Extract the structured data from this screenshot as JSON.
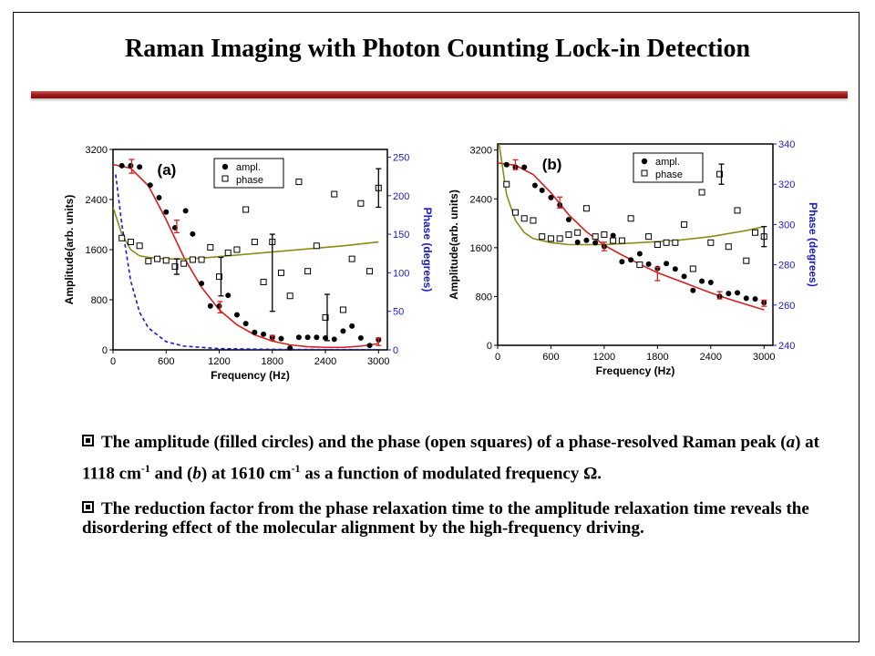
{
  "slide": {
    "title": "Raman Imaging with Photon Counting Lock-in Detection"
  },
  "captions": {
    "item1": {
      "p1": "The amplitude (filled circles) and the phase (open squares) of a phase-resolved Raman peak (",
      "a": "a",
      "p2": ") at 1118 cm",
      "sup1": "-1",
      "p3": " and (",
      "b": "b",
      "p4": ") at 1610 cm",
      "sup2": "-1",
      "p5": " as a function of modulated frequency Ω."
    },
    "item2": "The reduction factor from the phase relaxation time to the amplitude relaxation time reveals the disordering effect of the molecular alignment by the high-frequency driving."
  },
  "colors": {
    "fit_amp": "#d42020",
    "fit_phase": "#8c8c14",
    "blue_axis": "#1a1ac8",
    "errbar_red": "#d42020"
  },
  "chart_data": [
    {
      "type": "scatter",
      "panel_label": "(a)",
      "xlabel": "Frequency (Hz)",
      "ylabel": "Amplitude(arb. units)",
      "y2label": "Phase (degrees)",
      "xlim": [
        0,
        3100
      ],
      "ylim": [
        0,
        3200
      ],
      "y2lim": [
        0,
        260
      ],
      "xticks": [
        0,
        600,
        1200,
        1800,
        2400,
        3000
      ],
      "yticks": [
        0,
        800,
        1600,
        2400,
        3200
      ],
      "y2ticks": [
        0,
        50,
        100,
        150,
        200,
        250
      ],
      "legend": [
        "ampl.",
        "phase"
      ],
      "legend_position": "top-right",
      "series": [
        {
          "name": "ampl.",
          "marker": "filled-circle",
          "x": [
            100,
            200,
            300,
            420,
            520,
            600,
            700,
            820,
            900,
            1000,
            1100,
            1200,
            1300,
            1400,
            1500,
            1600,
            1700,
            1800,
            1900,
            2000,
            2100,
            2200,
            2300,
            2400,
            2500,
            2600,
            2700,
            2800,
            2900,
            3000
          ],
          "y": [
            2940,
            2940,
            2920,
            2630,
            2430,
            2200,
            1950,
            2220,
            1850,
            1060,
            700,
            700,
            870,
            560,
            420,
            280,
            250,
            200,
            180,
            30,
            200,
            200,
            200,
            190,
            170,
            300,
            380,
            190,
            70,
            160
          ]
        },
        {
          "name": "phase",
          "marker": "open-square",
          "x": [
            100,
            200,
            300,
            400,
            500,
            600,
            700,
            800,
            900,
            1000,
            1100,
            1200,
            1300,
            1400,
            1500,
            1600,
            1700,
            1800,
            1900,
            2000,
            2100,
            2200,
            2300,
            2400,
            2500,
            2600,
            2700,
            2800,
            2900,
            3000
          ],
          "y": [
            145,
            140,
            135,
            115,
            118,
            116,
            108,
            112,
            117,
            117,
            133,
            95,
            126,
            130,
            182,
            140,
            88,
            140,
            100,
            70,
            218,
            102,
            135,
            42,
            202,
            52,
            118,
            190,
            102,
            210
          ]
        },
        {
          "name": "ampl. fit",
          "style": "red-line",
          "x": [
            0,
            200,
            400,
            600,
            800,
            1000,
            1200,
            1400,
            1600,
            1800,
            2000,
            2200,
            2400,
            2600,
            2800,
            3000
          ],
          "y": [
            2960,
            2900,
            2620,
            2080,
            1480,
            1000,
            640,
            400,
            240,
            140,
            80,
            50,
            40,
            40,
            60,
            100
          ]
        },
        {
          "name": "phase fit",
          "style": "olive-line",
          "axis": "y2",
          "x": [
            0,
            100,
            200,
            300,
            400,
            600,
            800,
            1000,
            1400,
            1800,
            2200,
            2600,
            3000
          ],
          "y": [
            185,
            150,
            130,
            122,
            120,
            118,
            118,
            119,
            123,
            127,
            131,
            135,
            140
          ]
        },
        {
          "name": "blue dashed",
          "style": "blue-dash",
          "x": [
            30,
            100,
            200,
            300,
            400,
            600,
            800,
            1200,
            1800,
            2400,
            3000
          ],
          "y": [
            2800,
            2000,
            1100,
            600,
            350,
            130,
            60,
            20,
            8,
            5,
            3
          ]
        }
      ],
      "error_bars": [
        {
          "x": 210,
          "y": 2930,
          "err": 110,
          "color": "red"
        },
        {
          "x": 720,
          "y": 1970,
          "err": 100,
          "color": "red"
        },
        {
          "x": 1210,
          "y": 680,
          "err": 90,
          "color": "red"
        },
        {
          "x": 1800,
          "y": 190,
          "err": 40,
          "color": "red"
        },
        {
          "x": 3000,
          "y": 130,
          "err": 60,
          "color": "red"
        },
        {
          "x": 720,
          "y": 108,
          "err": 10,
          "color": "black",
          "axis": "y2"
        },
        {
          "x": 1220,
          "y": 95,
          "err": 25,
          "color": "black",
          "axis": "y2"
        },
        {
          "x": 1800,
          "y": 100,
          "err": 50,
          "color": "black",
          "axis": "y2"
        },
        {
          "x": 2420,
          "y": 42,
          "err": 30,
          "color": "black",
          "axis": "y2"
        },
        {
          "x": 3000,
          "y": 210,
          "err": 25,
          "color": "black",
          "axis": "y2"
        }
      ]
    },
    {
      "type": "scatter",
      "panel_label": "(b)",
      "xlabel": "Frequency (Hz)",
      "ylabel": "Amplitude(arb. units)",
      "y2label": "Phase (degrees)",
      "xlim": [
        0,
        3100
      ],
      "ylim": [
        0,
        3300
      ],
      "y2lim": [
        240,
        340
      ],
      "xticks": [
        0,
        600,
        1200,
        1800,
        2400,
        3000
      ],
      "yticks": [
        0,
        800,
        1600,
        2400,
        3200
      ],
      "y2ticks": [
        240,
        260,
        280,
        300,
        320,
        340
      ],
      "legend": [
        "ampl.",
        "phase"
      ],
      "legend_position": "top-right",
      "series": [
        {
          "name": "ampl.",
          "marker": "filled-circle",
          "x": [
            100,
            200,
            300,
            420,
            500,
            600,
            700,
            800,
            900,
            1000,
            1100,
            1200,
            1300,
            1400,
            1500,
            1600,
            1700,
            1800,
            1900,
            2000,
            2100,
            2200,
            2300,
            2400,
            2500,
            2600,
            2700,
            2800,
            2900,
            3000
          ],
          "y": [
            2960,
            2920,
            2920,
            2620,
            2540,
            2420,
            2300,
            2060,
            1690,
            1720,
            1680,
            1620,
            1800,
            1370,
            1400,
            1500,
            1330,
            1260,
            1340,
            1250,
            1130,
            900,
            1050,
            1030,
            800,
            850,
            860,
            770,
            760,
            700
          ]
        },
        {
          "name": "phase",
          "marker": "open-square",
          "x": [
            100,
            200,
            300,
            400,
            500,
            600,
            700,
            800,
            900,
            1000,
            1100,
            1200,
            1300,
            1400,
            1500,
            1600,
            1700,
            1800,
            1900,
            2000,
            2100,
            2200,
            2300,
            2400,
            2500,
            2600,
            2700,
            2800,
            2900,
            3000
          ],
          "y": [
            320,
            306,
            303,
            302,
            294,
            293,
            293,
            295,
            296,
            308,
            294,
            295,
            292,
            292,
            303,
            280,
            294,
            290,
            291,
            291,
            300,
            278,
            316,
            291,
            325,
            289,
            307,
            282,
            296,
            294
          ]
        },
        {
          "name": "ampl. fit",
          "style": "red-line",
          "x": [
            0,
            200,
            400,
            600,
            800,
            1000,
            1200,
            1400,
            1600,
            1800,
            2000,
            2200,
            2400,
            2600,
            2800,
            3000
          ],
          "y": [
            2990,
            2950,
            2800,
            2500,
            2140,
            1860,
            1640,
            1480,
            1330,
            1190,
            1080,
            970,
            860,
            760,
            670,
            580
          ]
        },
        {
          "name": "phase fit",
          "style": "olive-line",
          "axis": "y2",
          "x": [
            0,
            100,
            200,
            300,
            400,
            600,
            800,
            1000,
            1200,
            1600,
            2000,
            2400,
            2800,
            3000
          ],
          "y": [
            345,
            315,
            302,
            296,
            293,
            291,
            290,
            290,
            290,
            291,
            292,
            294,
            297,
            299
          ]
        }
      ],
      "error_bars": [
        {
          "x": 200,
          "y": 2960,
          "err": 80,
          "color": "red"
        },
        {
          "x": 700,
          "y": 2340,
          "err": 90,
          "color": "red"
        },
        {
          "x": 1200,
          "y": 1620,
          "err": 70,
          "color": "red"
        },
        {
          "x": 1800,
          "y": 1170,
          "err": 110,
          "color": "red"
        },
        {
          "x": 2500,
          "y": 820,
          "err": 60,
          "color": "red"
        },
        {
          "x": 3000,
          "y": 690,
          "err": 50,
          "color": "red"
        },
        {
          "x": 2520,
          "y": 325,
          "err": 5,
          "color": "black",
          "axis": "y2"
        },
        {
          "x": 3000,
          "y": 294,
          "err": 5,
          "color": "black",
          "axis": "y2"
        }
      ]
    }
  ]
}
